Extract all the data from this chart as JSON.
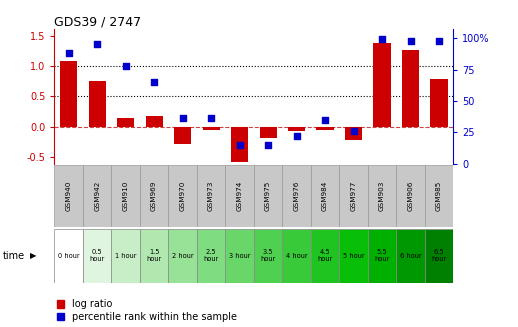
{
  "title": "GDS39 / 2747",
  "samples": [
    "GSM940",
    "GSM942",
    "GSM910",
    "GSM969",
    "GSM970",
    "GSM973",
    "GSM974",
    "GSM975",
    "GSM976",
    "GSM984",
    "GSM977",
    "GSM903",
    "GSM906",
    "GSM985"
  ],
  "time_labels": [
    "0 hour",
    "0.5\nhour",
    "1 hour",
    "1.5\nhour",
    "2 hour",
    "2.5\nhour",
    "3 hour",
    "3.5\nhour",
    "4 hour",
    "4.5\nhour",
    "5 hour",
    "5.5\nhour",
    "6 hour",
    "6.5\nhour"
  ],
  "log_ratio": [
    1.08,
    0.75,
    0.15,
    0.18,
    -0.28,
    -0.05,
    -0.58,
    -0.18,
    -0.07,
    -0.05,
    -0.22,
    1.38,
    1.27,
    0.78
  ],
  "percentile": [
    88,
    95,
    78,
    65,
    36,
    36,
    15,
    15,
    22,
    35,
    26,
    99,
    98,
    98
  ],
  "time_colors": [
    "#ffffff",
    "#e0f5e0",
    "#c8eec8",
    "#b0e8b0",
    "#98e298",
    "#80dc80",
    "#68d668",
    "#50d050",
    "#38ca38",
    "#20c420",
    "#08be08",
    "#00b000",
    "#009800",
    "#008000"
  ],
  "bar_color": "#cc0000",
  "dot_color": "#0000cc",
  "bg_color": "#ffffff",
  "ylim_left": [
    -0.6,
    1.6
  ],
  "ylim_right": [
    0,
    107
  ],
  "yticks_left": [
    -0.5,
    0.0,
    0.5,
    1.0,
    1.5
  ],
  "yticks_right": [
    0,
    25,
    50,
    75,
    100
  ],
  "hlines": [
    0.5,
    1.0
  ],
  "zero_line": 0.0,
  "legend_log": "log ratio",
  "legend_pct": "percentile rank within the sample"
}
